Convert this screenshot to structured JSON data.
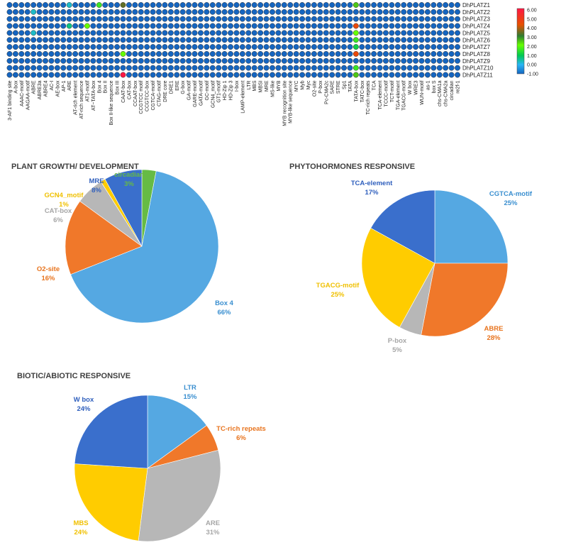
{
  "chart_data": [
    {
      "type": "heatmap",
      "title": "",
      "rows": [
        "DhPLATZ1",
        "DhPLATZ2",
        "DhPLATZ3",
        "DhPLATZ4",
        "DhPLATZ5",
        "DhPLATZ6",
        "DhPLATZ7",
        "DhPLATZ8",
        "DhPLATZ9",
        "DhPLATZ10",
        "DhPLATZ11"
      ],
      "columns": [
        "3-AF1 binding site",
        "A-box",
        "AAAC-motif",
        "AAGAA-motif",
        "ABRE",
        "ABRE3a",
        "ABRE4",
        "AC-I",
        "AE-box",
        "AP-1",
        "ARE",
        "AT-rich element",
        "AT-rich sequence",
        "AT1-motif",
        "AT~TATA-box",
        "Box 4",
        "Box II",
        "Box II-like sequence",
        "Box III",
        "CAAT-box",
        "CAT-box",
        "CCAAT-box",
        "CCGTCC motif",
        "CCGTCC-box",
        "CGTCA-motif",
        "CTAG-motif",
        "DRE core",
        "DRE1",
        "ERE",
        "G-box",
        "GA-motif",
        "GARE-motif",
        "GATA-motif",
        "GC-motif",
        "GCN4_motif",
        "GT1-motif",
        "HD-Zip 1",
        "HD-Zip 3",
        "I-box",
        "LAMP-element",
        "LTR",
        "MBS",
        "MBSI",
        "MRE",
        "MS-like",
        "MYB",
        "MYB recognition site",
        "MYB-like sequence",
        "MYC",
        "Myb",
        "Myc",
        "O2-site",
        "P-box",
        "Pc-CMA2c",
        "SARE",
        "STRE",
        "Sp1",
        "TATA",
        "TATA-box",
        "TATC-box",
        "TC-rich repeats",
        "TCA",
        "TCA-element",
        "TCCC-motif",
        "TCT-motif",
        "TGA-element",
        "TGACG-motif",
        "W box",
        "WRE3",
        "WUN-motif",
        "as-1",
        "box S",
        "chs-CMA1a",
        "chs-CMA2a",
        "circadian",
        "re2f-1"
      ],
      "values": [
        [
          -1,
          -1,
          -1,
          -1,
          -1,
          -1,
          -1,
          -1,
          -1,
          -1,
          0.5,
          -1,
          -1,
          -1,
          -1,
          2,
          -1,
          -1,
          -1,
          4,
          -1,
          -1,
          -1,
          -1,
          -1,
          -1,
          -1,
          -1,
          -1,
          -1,
          -1,
          -1,
          -1,
          -1,
          -1,
          -1,
          -1,
          -1,
          -1,
          -1,
          -1,
          -1,
          -1,
          -1,
          -1,
          -1,
          -1,
          -1,
          -1,
          -1,
          -1,
          -1,
          -1,
          -1,
          -1,
          -1,
          -1,
          -1,
          3,
          -1,
          -1,
          -1,
          -1,
          -1,
          -1,
          -1,
          -1,
          -1,
          -1,
          -1,
          -1,
          -1,
          -1,
          -1,
          -1,
          -1
        ],
        [
          -1,
          -1,
          -1,
          -1,
          0.5,
          -1,
          -1,
          -1,
          -1,
          -1,
          -1,
          -1,
          -1,
          -1,
          -1,
          -1,
          -1,
          -1,
          -1,
          -1,
          -1,
          -1,
          -1,
          -1,
          -1,
          -1,
          -1,
          -1,
          -1,
          -1,
          -1,
          -1,
          -1,
          -1,
          -1,
          -1,
          -1,
          -1,
          -1,
          -1,
          -1,
          -1,
          -1,
          -1,
          -1,
          -1,
          -1,
          -1,
          -1,
          -1,
          -1,
          -1,
          -1,
          -1,
          -1,
          -1,
          -1,
          -1,
          -1,
          -1,
          -1,
          -1,
          -1,
          -1,
          -1,
          -1,
          -1,
          -1,
          -1,
          -1,
          -1,
          -1,
          -1,
          -1,
          -1,
          -1
        ],
        [
          -1,
          -1,
          -1,
          -1,
          -1,
          -1,
          -1,
          -1,
          -1,
          -1,
          -1,
          -1,
          -1,
          -1,
          -1,
          -1,
          -1,
          -1,
          -1,
          -1,
          -1,
          -1,
          -1,
          -1,
          -1,
          -1,
          -1,
          -1,
          -1,
          -1,
          -1,
          -1,
          -1,
          -1,
          -1,
          -1,
          -1,
          -1,
          -1,
          -1,
          -1,
          -1,
          -1,
          -1,
          -1,
          -1,
          -1,
          -1,
          -1,
          -1,
          -1,
          -1,
          -1,
          -1,
          -1,
          -1,
          -1,
          -1,
          -1,
          -1,
          -1,
          -1,
          -1,
          -1,
          -1,
          -1,
          -1,
          -1,
          -1,
          -1,
          -1,
          -1,
          -1,
          -1,
          -1,
          -1
        ],
        [
          -1,
          -1,
          -1,
          -1,
          -1,
          -1,
          -1,
          -1,
          -1,
          -1,
          1,
          -1,
          -1,
          2.5,
          -1,
          -1,
          -1,
          -1,
          -1,
          -1,
          -1,
          -1,
          -1,
          -1,
          -1,
          -1,
          -1,
          -1,
          -1,
          -1,
          -1,
          -1,
          -1,
          -1,
          -1,
          -1,
          -1,
          -1,
          -1,
          -1,
          -1,
          -1,
          -1,
          -1,
          -1,
          -1,
          -1,
          -1,
          -1,
          -1,
          -1,
          -1,
          -1,
          -1,
          -1,
          -1,
          -1,
          -1,
          5,
          -1,
          -1,
          -1,
          -1,
          -1,
          -1,
          -1,
          -1,
          -1,
          -1,
          -1,
          -1,
          -1,
          -1,
          -1,
          -1,
          -1
        ],
        [
          -1,
          -1,
          -1,
          -1,
          0.5,
          -1,
          -1,
          -1,
          -1,
          -1,
          -1,
          -1,
          -1,
          -1,
          -1,
          -1,
          -1,
          -1,
          -1,
          -1,
          -1,
          -1,
          -1,
          -1,
          -1,
          -1,
          -1,
          -1,
          -1,
          -1,
          -1,
          -1,
          -1,
          -1,
          -1,
          -1,
          -1,
          -1,
          -1,
          -1,
          -1,
          -1,
          -1,
          -1,
          -1,
          -1,
          -1,
          -1,
          -1,
          -1,
          -1,
          -1,
          -1,
          -1,
          -1,
          -1,
          -1,
          -1,
          2.5,
          -1,
          -1,
          -1,
          -1,
          -1,
          -1,
          -1,
          -1,
          -1,
          -1,
          -1,
          -1,
          -1,
          -1,
          -1,
          -1,
          -1
        ],
        [
          -1,
          -1,
          -1,
          -1,
          -1,
          -1,
          -1,
          -1,
          -1,
          -1,
          -1,
          -1,
          -1,
          -1,
          -1,
          -1,
          -1,
          -1,
          -1,
          -1,
          -1,
          -1,
          -1,
          -1,
          -1,
          -1,
          -1,
          -1,
          -1,
          -1,
          -1,
          -1,
          -1,
          -1,
          -1,
          -1,
          -1,
          -1,
          -1,
          -1,
          -1,
          -1,
          -1,
          -1,
          -1,
          -1,
          -1,
          -1,
          -1,
          -1,
          -1,
          -1,
          -1,
          -1,
          -1,
          -1,
          -1,
          -1,
          2,
          -1,
          -1,
          -1,
          -1,
          -1,
          -1,
          -1,
          -1,
          -1,
          -1,
          -1,
          -1,
          -1,
          -1,
          -1,
          -1,
          -1
        ],
        [
          -1,
          -1,
          -1,
          -1,
          -1,
          -1,
          -1,
          -1,
          -1,
          -1,
          -1,
          -1,
          -1,
          -1,
          -1,
          -1,
          -1,
          -1,
          -1,
          -1,
          -1,
          -1,
          -1,
          -1,
          -1,
          -1,
          -1,
          -1,
          -1,
          -1,
          -1,
          -1,
          -1,
          -1,
          -1,
          -1,
          -1,
          -1,
          -1,
          -1,
          -1,
          -1,
          -1,
          -1,
          -1,
          -1,
          -1,
          -1,
          -1,
          -1,
          -1,
          -1,
          -1,
          -1,
          -1,
          -1,
          -1,
          -1,
          1.5,
          -1,
          -1,
          -1,
          -1,
          -1,
          -1,
          -1,
          -1,
          -1,
          -1,
          -1,
          -1,
          -1,
          -1,
          -1,
          -1,
          -1
        ],
        [
          -1,
          -1,
          -1,
          -1,
          -1,
          -1,
          -1,
          -1,
          -1,
          -1,
          -1,
          -1,
          -1,
          -1,
          -1,
          -1,
          -1,
          -1,
          -1,
          2.5,
          -1,
          -1,
          -1,
          -1,
          -1,
          -1,
          -1,
          -1,
          -1,
          -1,
          -1,
          -1,
          -1,
          -1,
          -1,
          -1,
          -1,
          -1,
          -1,
          -1,
          -1,
          -1,
          -1,
          -1,
          -1,
          -1,
          -1,
          -1,
          -1,
          -1,
          -1,
          -1,
          -1,
          -1,
          -1,
          -1,
          -1,
          -1,
          5,
          -1,
          -1,
          -1,
          -1,
          -1,
          -1,
          -1,
          -1,
          -1,
          -1,
          -1,
          -1,
          -1,
          -1,
          -1,
          -1,
          -1
        ],
        [
          -1,
          -1,
          -1,
          -1,
          -1,
          -1,
          -1,
          -1,
          -1,
          -1,
          -1,
          -1,
          -1,
          -1,
          -1,
          -1,
          -1,
          -1,
          -1,
          -1,
          -1,
          -1,
          -1,
          -1,
          -1,
          -1,
          -1,
          -1,
          -1,
          -1,
          -1,
          -1,
          -1,
          -1,
          -1,
          -1,
          -1,
          -1,
          -1,
          -1,
          -1,
          -1,
          -1,
          -1,
          -1,
          -1,
          -1,
          -1,
          -1,
          -1,
          -1,
          -1,
          -1,
          -1,
          -1,
          -1,
          -1,
          -1,
          -1,
          -1,
          -1,
          -1,
          -1,
          -1,
          -1,
          -1,
          -1,
          -1,
          -1,
          -1,
          -1,
          -1,
          -1,
          -1,
          -1,
          -1
        ],
        [
          -1,
          -1,
          -1,
          -1,
          -1,
          -1,
          -1,
          -1,
          -1,
          -1,
          -1,
          -1,
          -1,
          -1,
          -1,
          -1,
          -1,
          -1,
          -1,
          -1,
          -1,
          -1,
          -1,
          -1,
          -1,
          -1,
          -1,
          -1,
          -1,
          -1,
          -1,
          -1,
          -1,
          -1,
          -1,
          -1,
          -1,
          -1,
          -1,
          -1,
          -1,
          -1,
          -1,
          -1,
          -1,
          -1,
          -1,
          -1,
          -1,
          -1,
          -1,
          -1,
          -1,
          -1,
          -1,
          -1,
          -1,
          -1,
          2,
          -1,
          -1,
          -1,
          -1,
          -1,
          -1,
          -1,
          -1,
          -1,
          -1,
          -1,
          -1,
          -1,
          -1,
          -1,
          -1,
          -1
        ],
        [
          -1,
          -1,
          -1,
          -1,
          -1,
          -1,
          -1,
          -1,
          -1,
          -1,
          -1,
          -1,
          -1,
          -1,
          -1,
          -1,
          -1,
          -1,
          -1,
          6,
          -1,
          -1,
          -1,
          -1,
          -1,
          -1,
          -1,
          -1,
          -1,
          -1,
          -1,
          -1,
          -1,
          -1,
          -1,
          -1,
          -1,
          -1,
          -1,
          -1,
          -1,
          -1,
          -1,
          -1,
          -1,
          -1,
          -1,
          -1,
          -1,
          -1,
          -1,
          -1,
          -1,
          -1,
          -1,
          -1,
          -1,
          -1,
          3,
          -1,
          -1,
          -1,
          -1,
          -1,
          -1,
          -1,
          -1,
          -1,
          -1,
          -1,
          -1,
          -1,
          -1,
          -1,
          -1,
          -1
        ]
      ],
      "colorscale": {
        "ticks": [
          "6.00",
          "5.00",
          "4.00",
          "3.00",
          "2.00",
          "1.00",
          "0.00",
          "-1.00"
        ],
        "range": [
          -1,
          6
        ],
        "colors": [
          "#1565c0",
          "#29b6f6",
          "#00c853",
          "#66ff00",
          "#2e7d32",
          "#e65100",
          "#ff1744"
        ]
      }
    },
    {
      "type": "pie",
      "title": "PLANT GROWTH/ DEVELOPMENT",
      "slices": [
        {
          "label": "circadian",
          "value": 3,
          "pct": "3%",
          "color": "#66bb44"
        },
        {
          "label": "Box 4",
          "value": 66,
          "pct": "66%",
          "color": "#55a8e2"
        },
        {
          "label": "O2-site",
          "value": 16,
          "pct": "16%",
          "color": "#f0782a"
        },
        {
          "label": "CAT-box",
          "value": 6,
          "pct": "6%",
          "color": "#b7b7b7"
        },
        {
          "label": "GCN4_motif",
          "value": 1,
          "pct": "1%",
          "color": "#ffcc00"
        },
        {
          "label": "MRE",
          "value": 8,
          "pct": "8%",
          "color": "#3a6fcc"
        }
      ],
      "label_colors": {
        "circadian": "#66bb44",
        "Box 4": "#3a8fd0",
        "O2-site": "#e8741e",
        "CAT-box": "#a6a6a6",
        "GCN4_motif": "#f0c000",
        "MRE": "#2f5fbd"
      }
    },
    {
      "type": "pie",
      "title": "PHYTOHORMONES RESPONSIVE",
      "slices": [
        {
          "label": "CGTCA-motif",
          "value": 25,
          "pct": "25%",
          "color": "#55a8e2"
        },
        {
          "label": "ABRE",
          "value": 28,
          "pct": "28%",
          "color": "#f0782a"
        },
        {
          "label": "P-box",
          "value": 5,
          "pct": "5%",
          "color": "#b7b7b7"
        },
        {
          "label": "TGACG-motif",
          "value": 25,
          "pct": "25%",
          "color": "#ffcc00"
        },
        {
          "label": "TCA-element",
          "value": 17,
          "pct": "17%",
          "color": "#3a6fcc"
        }
      ],
      "label_colors": {
        "CGTCA-motif": "#3a8fd0",
        "ABRE": "#e8741e",
        "P-box": "#a6a6a6",
        "TGACG-motif": "#f0c000",
        "TCA-element": "#2f5fbd"
      }
    },
    {
      "type": "pie",
      "title": "BIOTIC/ABIOTIC RESPONSIVE",
      "slices": [
        {
          "label": "LTR",
          "value": 15,
          "pct": "15%",
          "color": "#55a8e2"
        },
        {
          "label": "TC-rich repeats",
          "value": 6,
          "pct": "6%",
          "color": "#f0782a"
        },
        {
          "label": "ARE",
          "value": 31,
          "pct": "31%",
          "color": "#b7b7b7"
        },
        {
          "label": "MBS",
          "value": 24,
          "pct": "24%",
          "color": "#ffcc00"
        },
        {
          "label": "W box",
          "value": 24,
          "pct": "24%",
          "color": "#3a6fcc"
        }
      ],
      "label_colors": {
        "LTR": "#3a8fd0",
        "TC-rich repeats": "#e8741e",
        "ARE": "#a6a6a6",
        "MBS": "#f0c000",
        "W box": "#2f5fbd"
      }
    }
  ]
}
